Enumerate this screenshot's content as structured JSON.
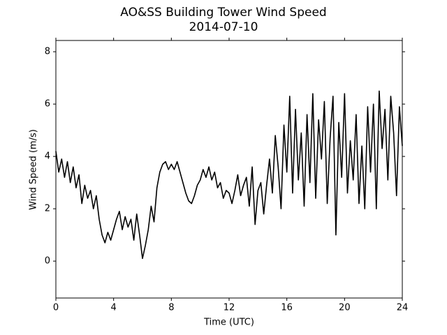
{
  "chart_data": {
    "type": "line",
    "title": "AO&SS Building Tower Wind Speed",
    "subtitle": "2014-07-10",
    "x_label": "Time (UTC)",
    "y_label": "Wind Speed (m/s)",
    "x": [
      0,
      0.2,
      0.4,
      0.6,
      0.8,
      1.0,
      1.2,
      1.4,
      1.6,
      1.8,
      2.0,
      2.2,
      2.4,
      2.6,
      2.8,
      3.0,
      3.2,
      3.4,
      3.6,
      3.8,
      4.0,
      4.2,
      4.4,
      4.6,
      4.8,
      5.0,
      5.2,
      5.4,
      5.6,
      5.8,
      6.0,
      6.2,
      6.4,
      6.6,
      6.8,
      7.0,
      7.2,
      7.4,
      7.6,
      7.8,
      8.0,
      8.2,
      8.4,
      8.6,
      8.8,
      9.0,
      9.2,
      9.4,
      9.6,
      9.8,
      10.0,
      10.2,
      10.4,
      10.6,
      10.8,
      11.0,
      11.2,
      11.4,
      11.6,
      11.8,
      12.0,
      12.2,
      12.4,
      12.6,
      12.8,
      13.0,
      13.2,
      13.4,
      13.6,
      13.8,
      14.0,
      14.2,
      14.4,
      14.6,
      14.8,
      15.0,
      15.2,
      15.4,
      15.6,
      15.8,
      16.0,
      16.2,
      16.4,
      16.6,
      16.8,
      17.0,
      17.2,
      17.4,
      17.6,
      17.8,
      18.0,
      18.2,
      18.4,
      18.6,
      18.8,
      19.0,
      19.2,
      19.4,
      19.6,
      19.8,
      20.0,
      20.2,
      20.4,
      20.6,
      20.8,
      21.0,
      21.2,
      21.4,
      21.6,
      21.8,
      22.0,
      22.2,
      22.4,
      22.6,
      22.8,
      23.0,
      23.2,
      23.4,
      23.6,
      23.8,
      24.0
    ],
    "series": [
      {
        "color": "#000000",
        "values": [
          4.2,
          3.4,
          3.9,
          3.2,
          3.8,
          3.0,
          3.6,
          2.8,
          3.3,
          2.2,
          2.9,
          2.4,
          2.7,
          2.0,
          2.5,
          1.6,
          1.0,
          0.7,
          1.1,
          0.8,
          1.2,
          1.6,
          1.9,
          1.2,
          1.7,
          1.3,
          1.6,
          0.8,
          1.8,
          1.0,
          0.1,
          0.6,
          1.2,
          2.1,
          1.5,
          2.8,
          3.4,
          3.7,
          3.8,
          3.5,
          3.7,
          3.5,
          3.8,
          3.4,
          3.0,
          2.6,
          2.3,
          2.2,
          2.5,
          2.9,
          3.1,
          3.5,
          3.2,
          3.6,
          3.1,
          3.4,
          2.8,
          3.0,
          2.4,
          2.7,
          2.6,
          2.2,
          2.7,
          3.3,
          2.5,
          2.9,
          3.2,
          2.1,
          3.6,
          1.4,
          2.7,
          3.0,
          1.8,
          2.9,
          3.9,
          2.6,
          4.8,
          3.6,
          2.0,
          5.2,
          3.4,
          6.3,
          2.6,
          5.8,
          3.1,
          4.9,
          2.1,
          5.6,
          3.0,
          6.4,
          2.4,
          5.4,
          3.9,
          6.1,
          2.2,
          4.7,
          6.3,
          1.0,
          5.3,
          3.2,
          6.4,
          2.6,
          4.6,
          3.1,
          5.6,
          2.2,
          4.4,
          2.0,
          5.9,
          3.4,
          6.0,
          2.0,
          6.5,
          4.3,
          5.8,
          3.1,
          6.3,
          4.9,
          2.5,
          5.9,
          4.4
        ]
      }
    ],
    "xlim": [
      0,
      24
    ],
    "xticks": [
      0,
      4,
      8,
      12,
      16,
      20,
      24
    ],
    "ylim": [
      -1.41,
      8.43
    ],
    "yticks": [
      0,
      2,
      4,
      6,
      8
    ]
  }
}
